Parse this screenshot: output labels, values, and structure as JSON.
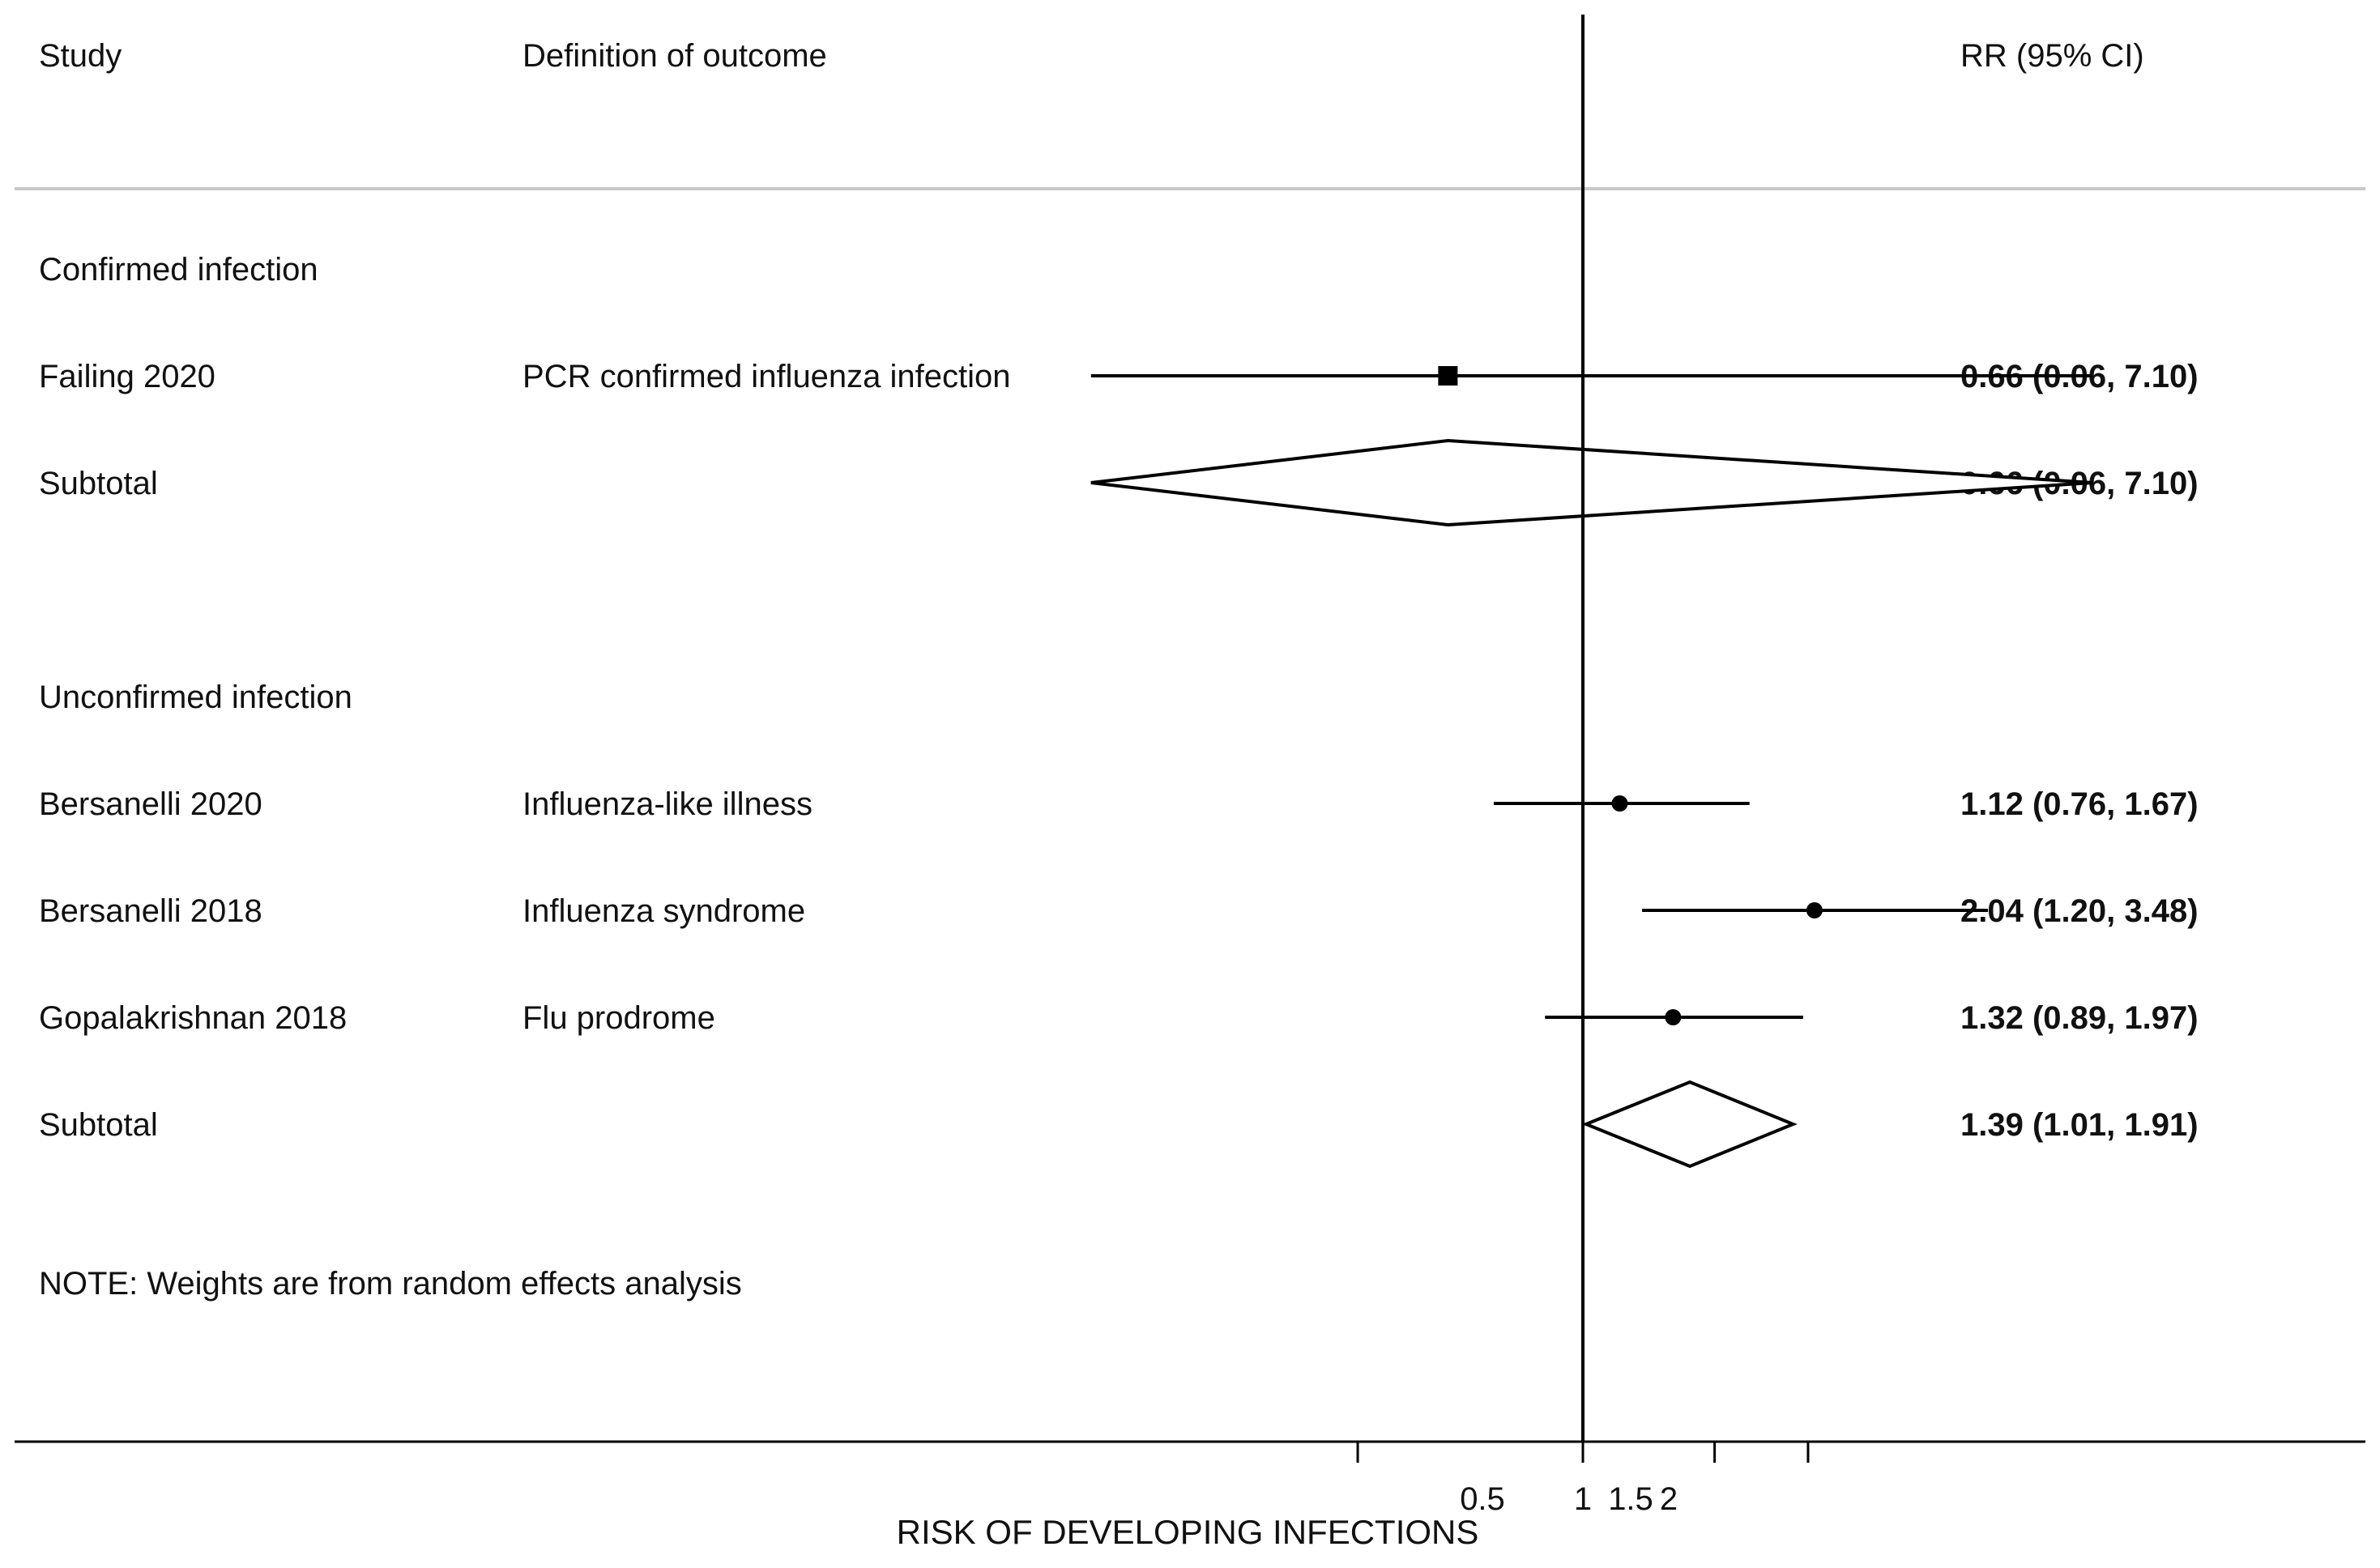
{
  "header": {
    "study": "Study",
    "definition": "Definition of outcome",
    "rr": "RR (95% CI)"
  },
  "note": "NOTE: Weights are from random effects analysis",
  "chart_data": {
    "type": "forest",
    "xlabel": "RISK OF DEVELOPING INFECTIONS",
    "xscale": "log",
    "null_line": 1,
    "ticks": [
      {
        "value": 0.5,
        "label": "0.5"
      },
      {
        "value": 1,
        "label": "1"
      },
      {
        "value": 1.5,
        "label": "1.5"
      },
      {
        "value": 2,
        "label": "2"
      }
    ],
    "rows": [
      {
        "kind": "group",
        "label": "Confirmed infection"
      },
      {
        "kind": "study",
        "study": "Failing 2020",
        "definition": "PCR confirmed influenza infection",
        "rr": 0.66,
        "lo": 0.06,
        "hi": 7.1,
        "text": "0.66 (0.06, 7.10)",
        "marker": "square"
      },
      {
        "kind": "subtotal",
        "study": "Subtotal",
        "rr": 0.66,
        "lo": 0.06,
        "hi": 7.1,
        "text": "0.66 (0.06, 7.10)"
      },
      {
        "kind": "spacer"
      },
      {
        "kind": "group",
        "label": "Unconfirmed infection"
      },
      {
        "kind": "study",
        "study": "Bersanelli 2020",
        "definition": "Influenza-like illness",
        "rr": 1.12,
        "lo": 0.76,
        "hi": 1.67,
        "text": "1.12 (0.76, 1.67)",
        "marker": "dot"
      },
      {
        "kind": "study",
        "study": "Bersanelli 2018",
        "definition": "Influenza syndrome",
        "rr": 2.04,
        "lo": 1.2,
        "hi": 3.48,
        "text": "2.04 (1.20, 3.48)",
        "marker": "dot"
      },
      {
        "kind": "study",
        "study": "Gopalakrishnan 2018",
        "definition": "Flu prodrome",
        "rr": 1.32,
        "lo": 0.89,
        "hi": 1.97,
        "text": "1.32 (0.89, 1.97)",
        "marker": "dot"
      },
      {
        "kind": "subtotal",
        "study": "Subtotal",
        "rr": 1.39,
        "lo": 1.01,
        "hi": 1.91,
        "text": "1.39 (1.01, 1.91)"
      }
    ]
  }
}
